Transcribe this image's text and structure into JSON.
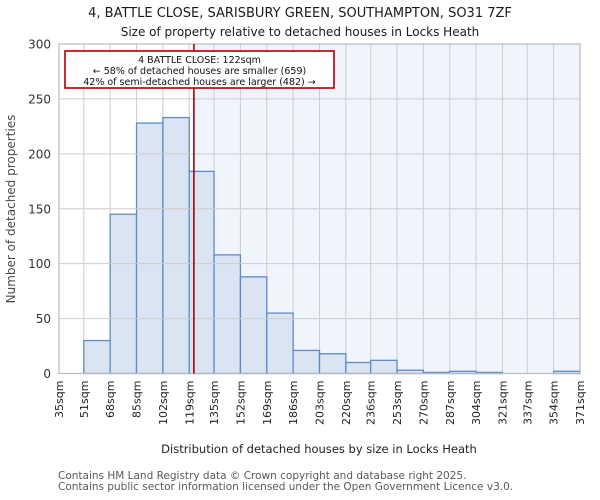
{
  "page": {
    "title_line1": "4, BATTLE CLOSE, SARISBURY GREEN, SOUTHAMPTON, SO31 7ZF",
    "title_line2": "Size of property relative to detached houses in Locks Heath",
    "footer_line1": "Contains HM Land Registry data © Crown copyright and database right 2025.",
    "footer_line2": "Contains public sector information licensed under the Open Government Licence v3.0."
  },
  "chart_data": {
    "type": "bar",
    "title": "4, BATTLE CLOSE, SARISBURY GREEN, SOUTHAMPTON, SO31 7ZF",
    "subtitle": "Size of property relative to detached houses in Locks Heath",
    "xlabel": "Distribution of detached houses by size in Locks Heath",
    "ylabel": "Number of detached properties",
    "bin_edges_sqm": [
      35,
      51,
      68,
      85,
      102,
      119,
      135,
      152,
      169,
      186,
      203,
      220,
      236,
      253,
      270,
      287,
      304,
      321,
      337,
      354,
      371
    ],
    "x_tick_labels": [
      "35sqm",
      "51sqm",
      "68sqm",
      "85sqm",
      "102sqm",
      "119sqm",
      "135sqm",
      "152sqm",
      "169sqm",
      "186sqm",
      "203sqm",
      "220sqm",
      "236sqm",
      "253sqm",
      "270sqm",
      "287sqm",
      "304sqm",
      "321sqm",
      "337sqm",
      "354sqm",
      "371sqm"
    ],
    "values": [
      0,
      30,
      145,
      228,
      233,
      184,
      108,
      88,
      55,
      21,
      18,
      10,
      12,
      3,
      1,
      2,
      1,
      0,
      0,
      2
    ],
    "ylim": [
      0,
      300
    ],
    "y_ticks": [
      0,
      50,
      100,
      150,
      200,
      250,
      300
    ],
    "grid": true,
    "marker": {
      "value_sqm": 122,
      "color": "#aa0000"
    },
    "shaded_region": {
      "from_sqm": 122,
      "to_sqm": 371
    },
    "annotation_lines": [
      "4 BATTLE CLOSE: 122sqm",
      "← 58% of detached houses are smaller (659)",
      "42% of semi-detached houses are larger (482) →"
    ],
    "colors": {
      "bar_fill": "#dae4f3",
      "bar_border": "#5f8cc8",
      "grid": "#cdcdcd",
      "plot_border": "#bbbbbb",
      "shaded_region": "#f0f4fc",
      "marker": "#aa0000",
      "annotation_border": "#aa0000"
    }
  }
}
